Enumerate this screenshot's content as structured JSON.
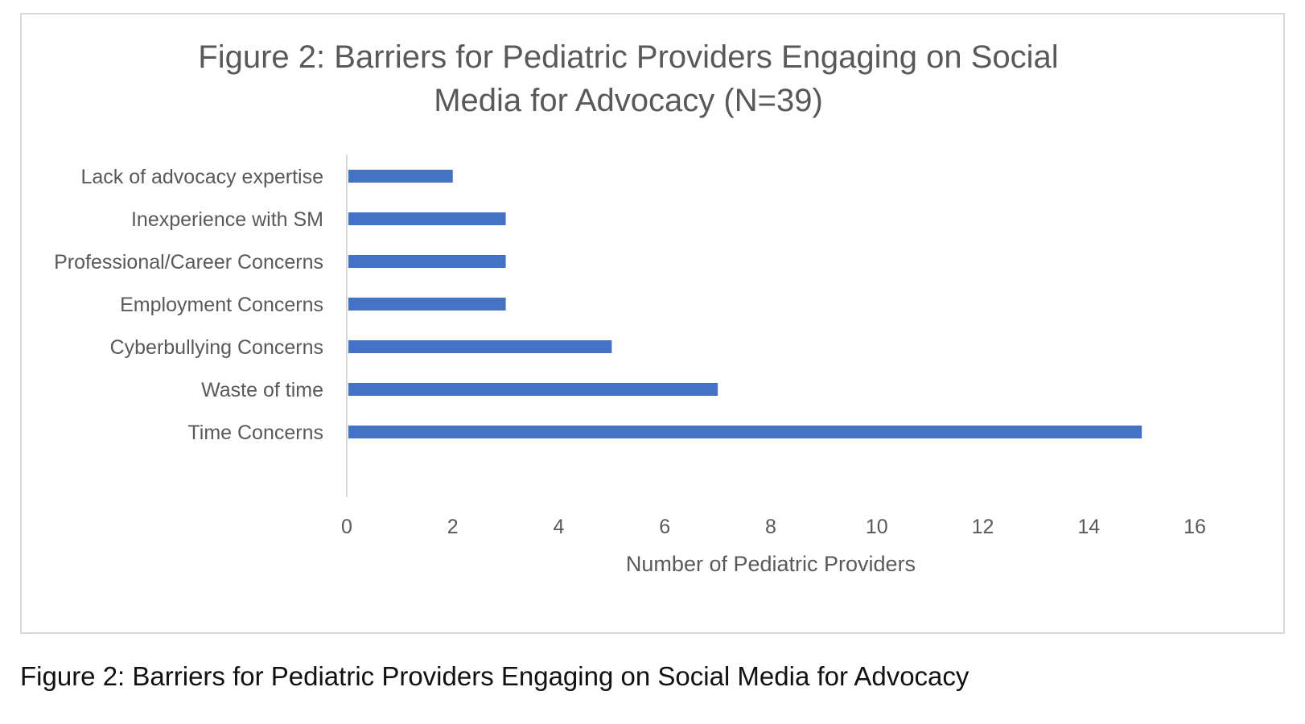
{
  "caption": "Figure 2: Barriers for Pediatric Providers Engaging on Social Media for Advocacy",
  "chart_data": {
    "type": "bar",
    "orientation": "horizontal",
    "title_lines": [
      "Figure 2: Barriers for Pediatric Providers Engaging on Social",
      "Media for Advocacy (N=39)"
    ],
    "categories": [
      "Lack of advocacy expertise",
      "Inexperience with SM",
      "Professional/Career Concerns",
      "Employment Concerns",
      "Cyberbullying Concerns",
      "Waste of time",
      "Time Concerns"
    ],
    "values": [
      2,
      3,
      3,
      3,
      5,
      7,
      15
    ],
    "xlabel": "Number of Pediatric Providers",
    "ylabel": "",
    "xlim": [
      0,
      16
    ],
    "xticks": [
      0,
      2,
      4,
      6,
      8,
      10,
      12,
      14,
      16
    ],
    "grid": false,
    "legend": "none",
    "bar_color": "#4472c4",
    "text_color": "#595959",
    "axis_color": "#d9d9d9"
  }
}
